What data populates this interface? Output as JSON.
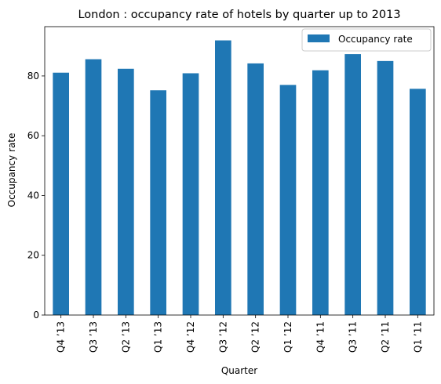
{
  "chart_data": {
    "type": "bar",
    "title": "London : occupancy rate of hotels by quarter up to 2013",
    "xlabel": "Quarter",
    "ylabel": "Occupancy rate",
    "categories": [
      "Q4 ’13",
      "Q3 ’13",
      "Q2 ’13",
      "Q1 ’13",
      "Q4 ’12",
      "Q3 ’12",
      "Q2 ’12",
      "Q1 ’12",
      "Q4 ’11",
      "Q3 ’11",
      "Q2 ’11",
      "Q1 ’11"
    ],
    "series": [
      {
        "name": "Occupancy rate",
        "color": "#1f77b4",
        "values": [
          81.1,
          85.6,
          82.4,
          75.2,
          80.9,
          91.9,
          84.2,
          77.0,
          81.9,
          87.3,
          85.0,
          75.7
        ]
      }
    ],
    "ylim": [
      0,
      96.5
    ],
    "yticks": [
      0,
      20,
      40,
      60,
      80
    ],
    "legend": "upper right",
    "grid": false
  }
}
